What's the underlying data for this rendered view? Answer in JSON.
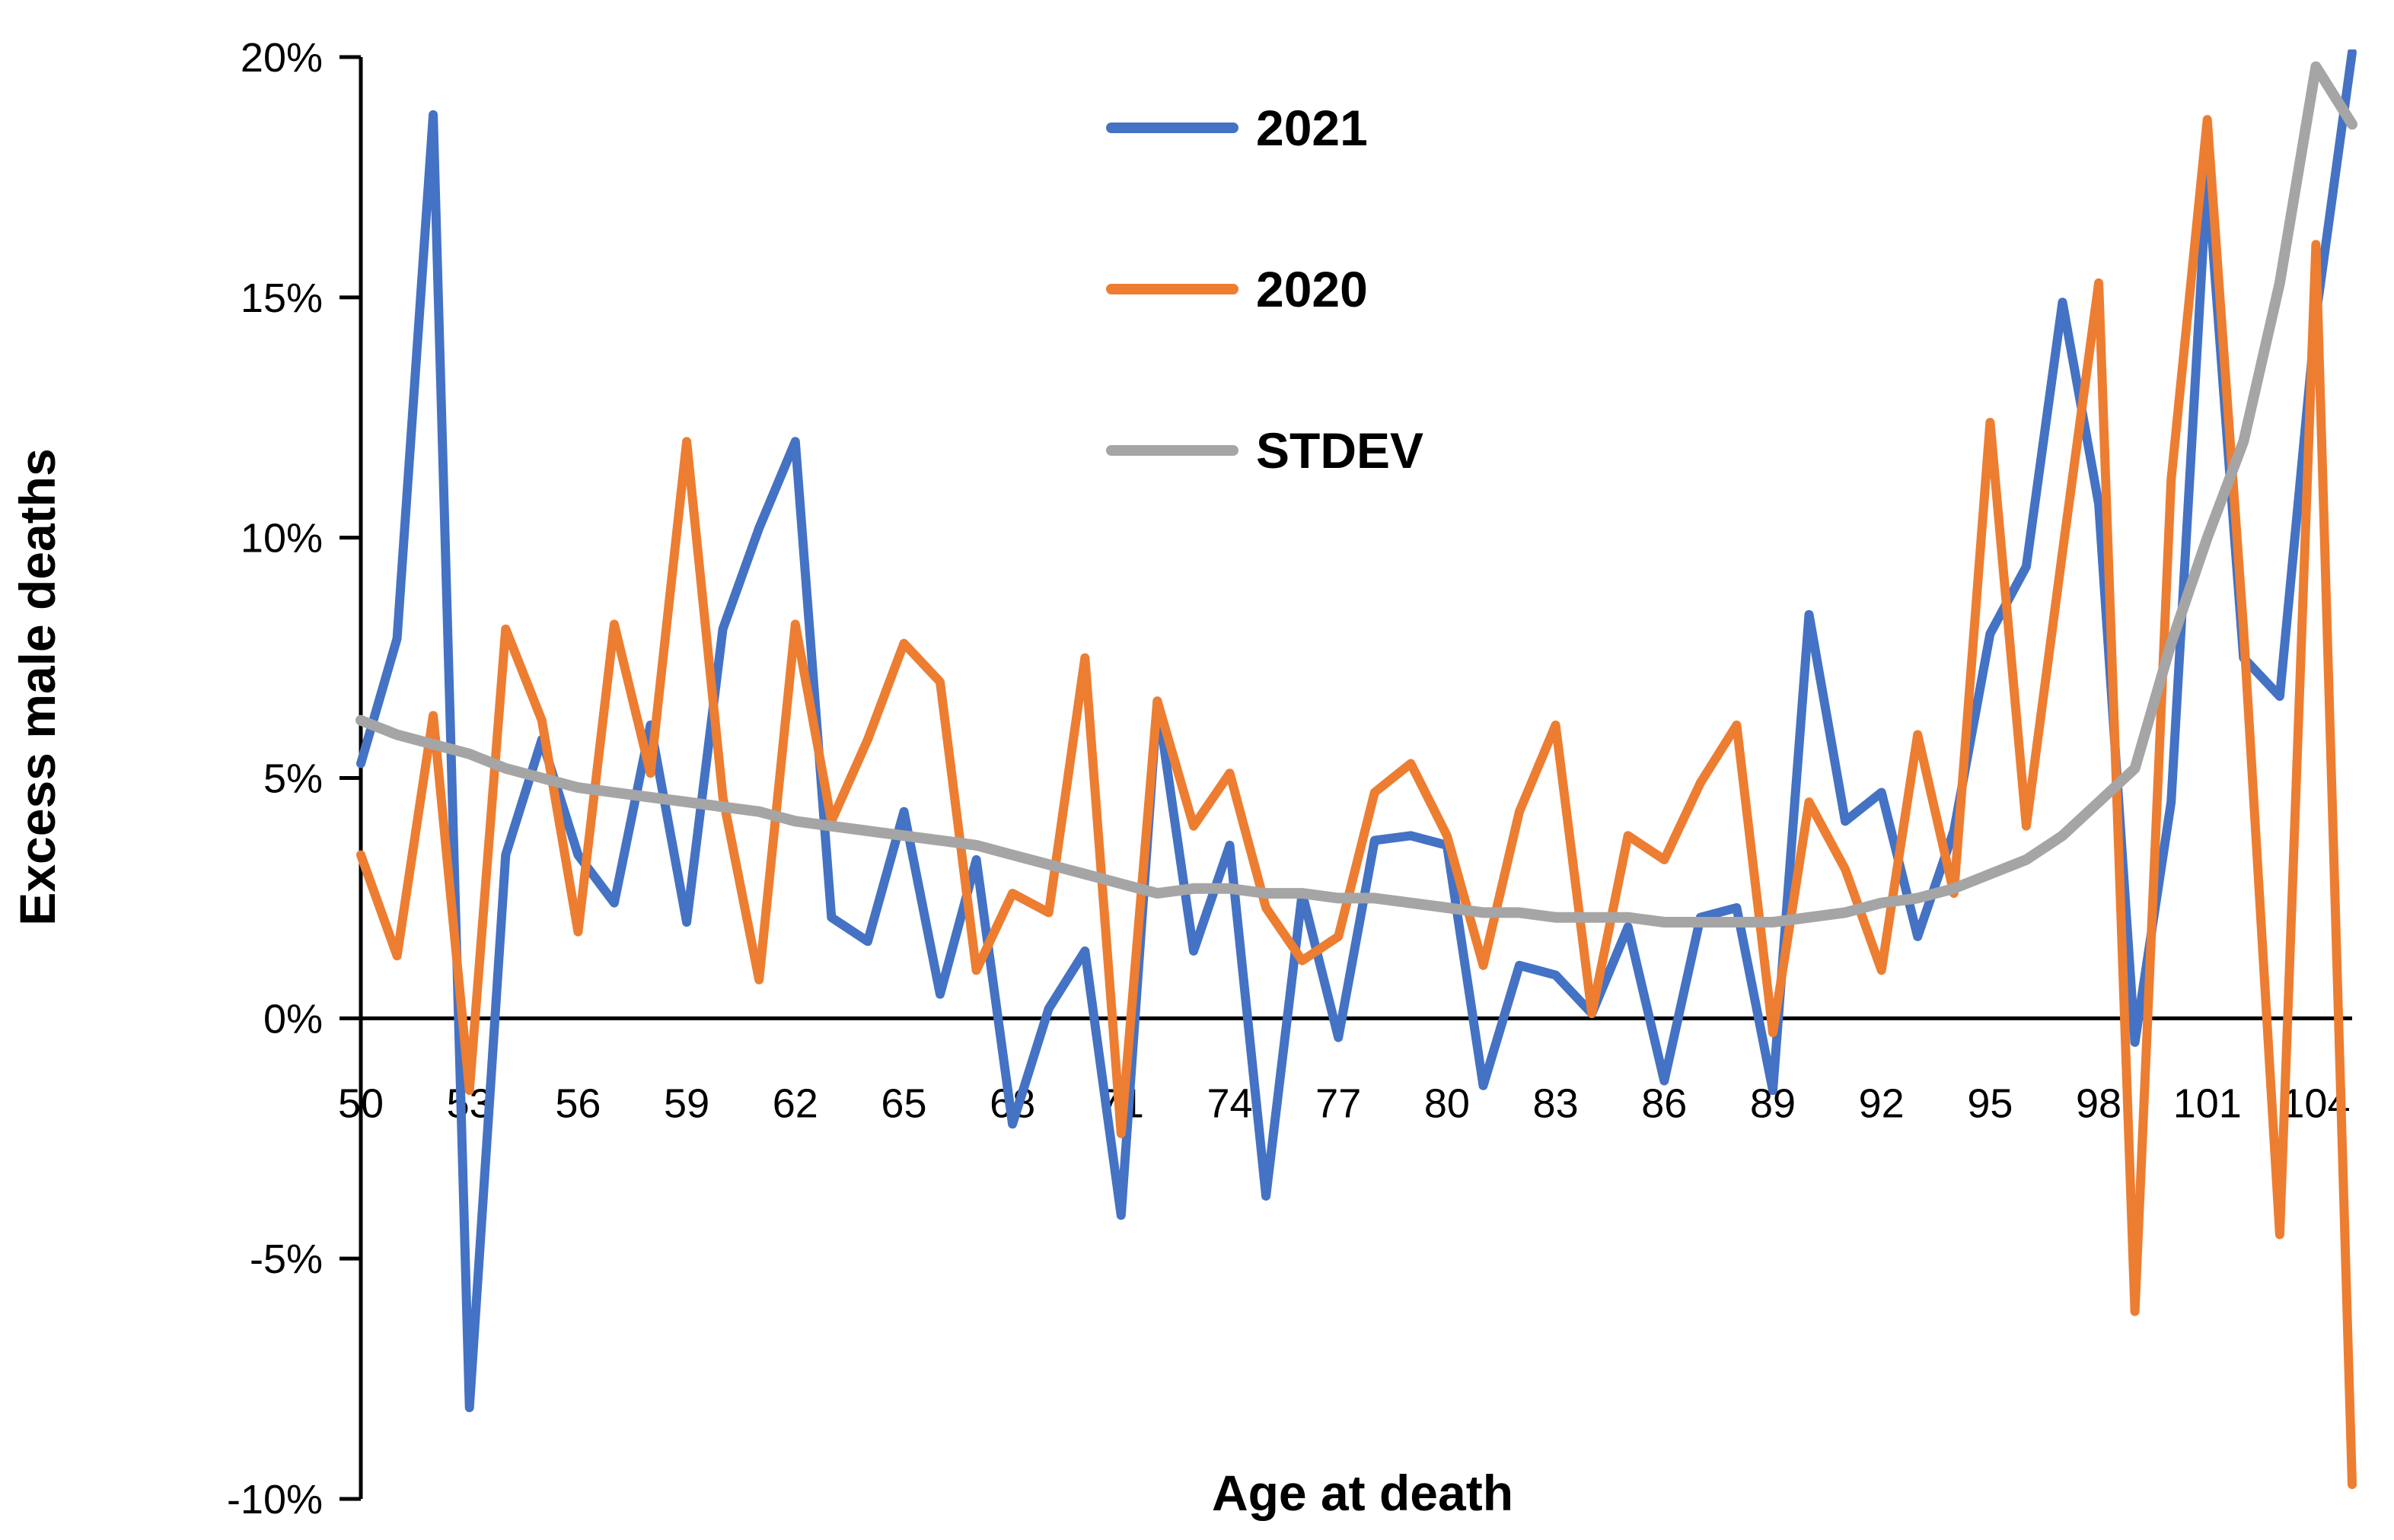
{
  "chart_data": {
    "type": "line",
    "title": "",
    "xlabel": "Age at death",
    "ylabel": "Excess male deaths",
    "x_range": [
      50,
      105
    ],
    "ylim": [
      -0.1,
      0.2
    ],
    "y_ticks": [
      -0.1,
      -0.05,
      0,
      0.05,
      0.1,
      0.15,
      0.2
    ],
    "y_tick_labels": [
      "-10%",
      "-5%",
      "0%",
      "5%",
      "10%",
      "15%",
      "20%"
    ],
    "x_ticks": [
      50,
      53,
      56,
      59,
      62,
      65,
      68,
      71,
      74,
      77,
      80,
      83,
      86,
      89,
      92,
      95,
      98,
      101,
      104
    ],
    "x_tick_labels": [
      "50",
      "53",
      "56",
      "59",
      "62",
      "65",
      "68",
      "71",
      "74",
      "77",
      "80",
      "83",
      "86",
      "89",
      "92",
      "95",
      "98",
      "101",
      "104"
    ],
    "grid": false,
    "legend_position": "top-center",
    "x": [
      50,
      51,
      52,
      53,
      54,
      55,
      56,
      57,
      58,
      59,
      60,
      61,
      62,
      63,
      64,
      65,
      66,
      67,
      68,
      69,
      70,
      71,
      72,
      73,
      74,
      75,
      76,
      77,
      78,
      79,
      80,
      81,
      82,
      83,
      84,
      85,
      86,
      87,
      88,
      89,
      90,
      91,
      92,
      93,
      94,
      95,
      96,
      97,
      98,
      99,
      100,
      101,
      102,
      103,
      104,
      105
    ],
    "series": [
      {
        "name": "2021",
        "color": "#4472C4",
        "values": [
          0.053,
          0.079,
          0.188,
          -0.081,
          0.034,
          0.058,
          0.034,
          0.024,
          0.061,
          0.02,
          0.081,
          0.102,
          0.12,
          0.021,
          0.016,
          0.043,
          0.005,
          0.033,
          -0.022,
          0.002,
          0.014,
          -0.041,
          0.066,
          0.014,
          0.036,
          -0.037,
          0.026,
          -0.004,
          0.037,
          0.038,
          0.036,
          -0.014,
          0.011,
          0.009,
          0.001,
          0.019,
          -0.013,
          0.021,
          0.023,
          -0.015,
          0.084,
          0.041,
          0.047,
          0.017,
          0.039,
          0.08,
          0.094,
          0.149,
          0.107,
          -0.005,
          0.045,
          0.176,
          0.075,
          0.067,
          0.146,
          0.201
        ]
      },
      {
        "name": "2020",
        "color": "#ED7D31",
        "values": [
          0.034,
          0.013,
          0.063,
          -0.015,
          0.081,
          0.062,
          0.018,
          0.082,
          0.051,
          0.12,
          0.046,
          0.008,
          0.082,
          0.041,
          0.058,
          0.078,
          0.07,
          0.01,
          0.026,
          0.022,
          0.075,
          -0.024,
          0.066,
          0.04,
          0.051,
          0.023,
          0.012,
          0.017,
          0.047,
          0.053,
          0.038,
          0.011,
          0.043,
          0.061,
          0.001,
          0.038,
          0.033,
          0.049,
          0.061,
          -0.003,
          0.045,
          0.031,
          0.01,
          0.059,
          0.026,
          0.124,
          0.04,
          0.097,
          0.153,
          -0.061,
          0.112,
          0.187,
          0.081,
          -0.045,
          0.161,
          -0.097
        ]
      },
      {
        "name": "STDEV",
        "color": "#A5A5A5",
        "values": [
          0.062,
          0.059,
          0.057,
          0.055,
          0.052,
          0.05,
          0.048,
          0.047,
          0.046,
          0.045,
          0.044,
          0.043,
          0.041,
          0.04,
          0.039,
          0.038,
          0.037,
          0.036,
          0.034,
          0.032,
          0.03,
          0.028,
          0.026,
          0.027,
          0.027,
          0.026,
          0.026,
          0.025,
          0.025,
          0.024,
          0.023,
          0.022,
          0.022,
          0.021,
          0.021,
          0.021,
          0.02,
          0.02,
          0.02,
          0.02,
          0.021,
          0.022,
          0.024,
          0.025,
          0.027,
          0.03,
          0.033,
          0.038,
          0.045,
          0.052,
          0.078,
          0.1,
          0.12,
          0.153,
          0.198,
          0.186
        ]
      }
    ]
  }
}
